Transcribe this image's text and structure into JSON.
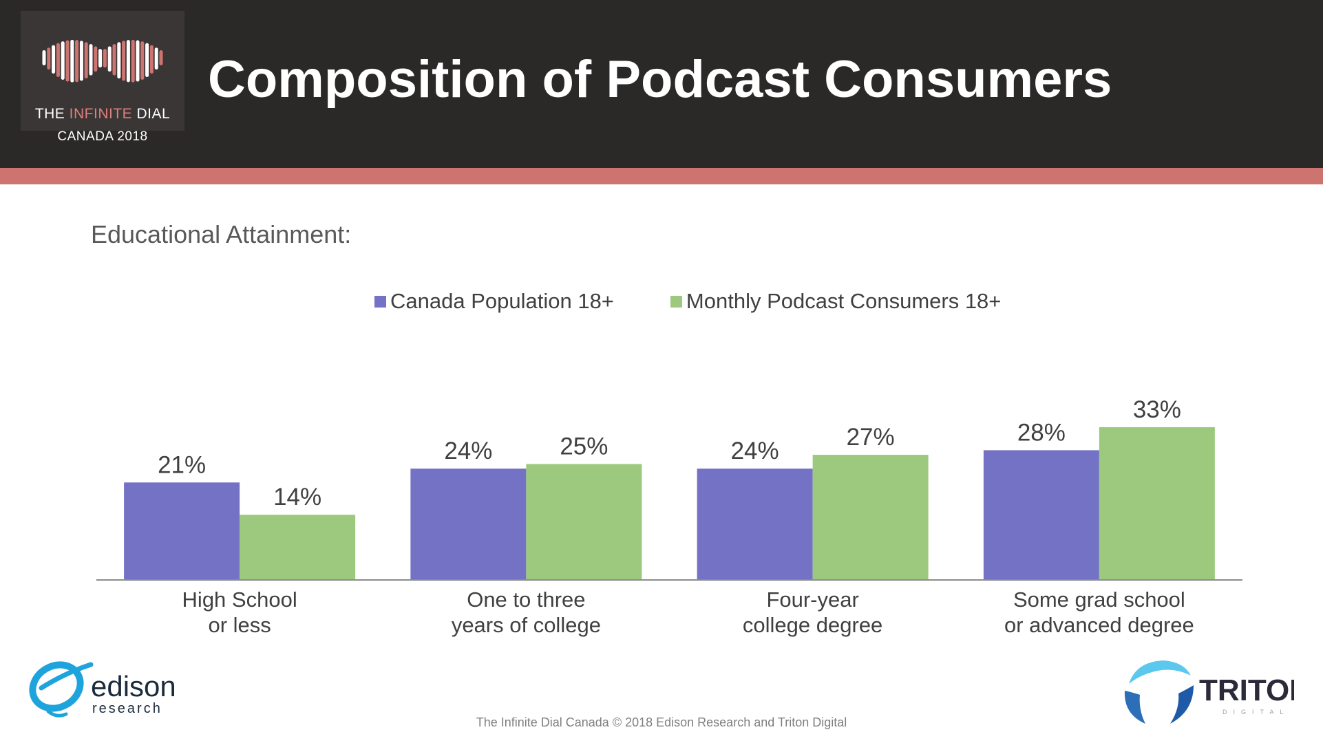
{
  "header": {
    "title": "Composition of Podcast Consumers",
    "logo_line1_a": "THE ",
    "logo_line1_b": "INFINITE",
    "logo_line1_c": " DIAL",
    "logo_line2": "CANADA 2018"
  },
  "colors": {
    "header_bg": "#2b2828",
    "accent_stripe": "#cd7471",
    "series_population": "#7372c5",
    "series_podcast": "#9dc97e"
  },
  "chart_data": {
    "type": "bar",
    "title": "Educational Attainment:",
    "categories": [
      [
        "High School",
        "or less"
      ],
      [
        "One to three",
        "years of college"
      ],
      [
        "Four-year",
        "college degree"
      ],
      [
        "Some grad school",
        "or advanced degree"
      ]
    ],
    "series": [
      {
        "name": "Canada Population 18+",
        "values": [
          21,
          24,
          24,
          28
        ],
        "color": "#7372c5"
      },
      {
        "name": "Monthly Podcast Consumers 18+",
        "values": [
          14,
          25,
          27,
          33
        ],
        "color": "#9dc97e"
      }
    ],
    "value_suffix": "%",
    "ylim": [
      0,
      40
    ],
    "grid": false,
    "legend_position": "top"
  },
  "footer": {
    "copyright": "The Infinite Dial Canada  © 2018 Edison Research and Triton Digital",
    "edison_word": "edison",
    "edison_sub": "research",
    "triton_word": "TRITON",
    "triton_sub": "DIGITAL"
  }
}
